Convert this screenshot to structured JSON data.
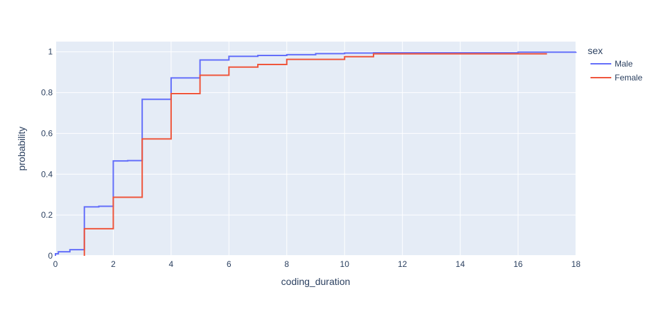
{
  "chart_data": {
    "type": "line",
    "line_shape": "step",
    "xlabel": "coding_duration",
    "ylabel": "probability",
    "xlim": [
      0,
      18
    ],
    "ylim": [
      0,
      1.05
    ],
    "x_ticks": [
      0,
      2,
      4,
      6,
      8,
      10,
      12,
      14,
      16,
      18
    ],
    "y_ticks": [
      0,
      0.2,
      0.4,
      0.6,
      0.8,
      1
    ],
    "x_tick_labels": [
      "0",
      "2",
      "4",
      "6",
      "8",
      "10",
      "12",
      "14",
      "16",
      "18"
    ],
    "y_tick_labels": [
      "0",
      "0.2",
      "0.4",
      "0.6",
      "0.8",
      "1"
    ],
    "grid": true,
    "background": "#e5ecf6",
    "legend": {
      "title": "sex",
      "position": "top-right-outside"
    },
    "series": [
      {
        "name": "Male",
        "color": "#636efa",
        "x": [
          0,
          0.1,
          0.5,
          1,
          1.5,
          2,
          2.5,
          3,
          4,
          5,
          6,
          7,
          8,
          9,
          10,
          11,
          16,
          18
        ],
        "y": [
          0.01,
          0.02,
          0.03,
          0.24,
          0.243,
          0.465,
          0.467,
          0.767,
          0.872,
          0.96,
          0.978,
          0.982,
          0.986,
          0.991,
          0.994,
          0.995,
          0.998,
          1.0
        ]
      },
      {
        "name": "Female",
        "color": "#ef553b",
        "x": [
          1,
          2,
          3,
          4,
          5,
          6,
          7,
          8,
          10,
          11,
          17
        ],
        "y": [
          0.133,
          0.287,
          0.573,
          0.795,
          0.885,
          0.925,
          0.938,
          0.963,
          0.976,
          0.99,
          0.99
        ]
      }
    ]
  }
}
